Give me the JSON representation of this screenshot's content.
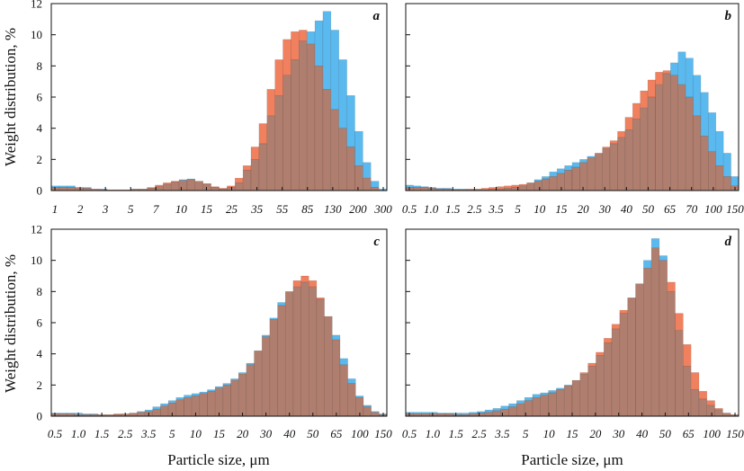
{
  "colors": {
    "series_blue": "#5ab9ee",
    "series_orange": "#f0805e",
    "overlap": "#b07e6e",
    "frame": "#111111"
  },
  "y_axis_label": "Weight distribution, %",
  "x_axis_label": "Particle size, μm",
  "chart_data": [
    {
      "type": "bar",
      "panel": "a",
      "xlabel": "",
      "ylabel": "Weight distribution, %",
      "ylim": [
        0,
        12
      ],
      "y_ticks": [
        0,
        2,
        4,
        6,
        8,
        10,
        12
      ],
      "x_tick_labels": [
        "1",
        "2",
        "3",
        "5",
        "7",
        "10",
        "15",
        "25",
        "35",
        "55",
        "85",
        "130",
        "200",
        "300"
      ],
      "series": [
        {
          "values": [
            0.3,
            0.3,
            0.3,
            0.2,
            0.2,
            0.1,
            0.1,
            0.05,
            0.05,
            0.05,
            0.1,
            0.1,
            0.15,
            0.25,
            0.4,
            0.55,
            0.7,
            0.75,
            0.6,
            0.4,
            0.2,
            0.1,
            0.2,
            0.5,
            1.3,
            2.0,
            3.0,
            4.8,
            6.1,
            7.4,
            8.4,
            9.6,
            10.2,
            10.9,
            11.5,
            10.3,
            8.4,
            6.1,
            3.8,
            1.8,
            0.6,
            0.1
          ]
        },
        {
          "values": [
            0.2,
            0.2,
            0.2,
            0.2,
            0.15,
            0.1,
            0.05,
            0.05,
            0.05,
            0.05,
            0.1,
            0.1,
            0.2,
            0.35,
            0.5,
            0.6,
            0.65,
            0.7,
            0.6,
            0.45,
            0.25,
            0.15,
            0.3,
            0.8,
            1.6,
            2.8,
            4.3,
            6.5,
            8.4,
            9.7,
            10.2,
            10.3,
            9.4,
            8.0,
            6.5,
            5.2,
            4.0,
            2.8,
            1.6,
            0.8,
            0.2,
            0.0
          ]
        }
      ]
    },
    {
      "type": "bar",
      "panel": "b",
      "xlabel": "",
      "ylabel": "",
      "ylim": [
        0,
        12
      ],
      "y_ticks": [
        0,
        2,
        4,
        6,
        8,
        10,
        12
      ],
      "x_tick_labels": [
        "0.5",
        "1.0",
        "1.5",
        "2.5",
        "3.5",
        "5",
        "10",
        "15",
        "20",
        "30",
        "40",
        "50",
        "65",
        "70",
        "100",
        "150"
      ],
      "series": [
        {
          "values": [
            0.35,
            0.3,
            0.25,
            0.2,
            0.15,
            0.15,
            0.1,
            0.1,
            0.05,
            0.05,
            0.05,
            0.1,
            0.1,
            0.15,
            0.2,
            0.3,
            0.5,
            0.7,
            0.9,
            1.2,
            1.4,
            1.6,
            1.8,
            2.0,
            2.2,
            2.4,
            2.7,
            3.0,
            3.4,
            3.9,
            4.6,
            5.3,
            6.0,
            6.8,
            7.5,
            8.2,
            8.9,
            8.5,
            7.4,
            6.3,
            5.0,
            3.8,
            2.4,
            0.9
          ]
        },
        {
          "values": [
            0.2,
            0.2,
            0.2,
            0.15,
            0.1,
            0.1,
            0.05,
            0.05,
            0.1,
            0.1,
            0.15,
            0.2,
            0.25,
            0.3,
            0.35,
            0.4,
            0.5,
            0.6,
            0.75,
            0.9,
            1.1,
            1.3,
            1.5,
            1.8,
            2.1,
            2.4,
            2.8,
            3.2,
            3.8,
            4.7,
            5.6,
            6.4,
            7.1,
            7.6,
            7.7,
            7.4,
            6.8,
            6.0,
            4.8,
            3.5,
            2.5,
            1.6,
            0.9,
            0.3
          ]
        }
      ]
    },
    {
      "type": "bar",
      "panel": "c",
      "xlabel": "Particle size, μm",
      "ylabel": "Weight distribution, %",
      "ylim": [
        0,
        12
      ],
      "y_ticks": [
        0,
        2,
        4,
        6,
        8,
        10,
        12
      ],
      "x_tick_labels": [
        "0.5",
        "1.0",
        "1.5",
        "2.5",
        "3.5",
        "5",
        "10",
        "15",
        "20",
        "30",
        "40",
        "50",
        "65",
        "100",
        "150"
      ],
      "series": [
        {
          "values": [
            0.2,
            0.2,
            0.2,
            0.2,
            0.15,
            0.15,
            0.1,
            0.1,
            0.1,
            0.15,
            0.2,
            0.3,
            0.4,
            0.6,
            0.8,
            1.0,
            1.2,
            1.35,
            1.45,
            1.55,
            1.7,
            1.9,
            2.1,
            2.4,
            2.8,
            3.4,
            4.2,
            5.2,
            6.3,
            7.3,
            8.0,
            8.3,
            8.6,
            8.3,
            7.5,
            6.4,
            5.2,
            3.7,
            2.4,
            1.3,
            0.7,
            0.3,
            0.15
          ]
        },
        {
          "values": [
            0.15,
            0.15,
            0.15,
            0.1,
            0.1,
            0.1,
            0.1,
            0.1,
            0.15,
            0.15,
            0.2,
            0.25,
            0.3,
            0.45,
            0.65,
            0.85,
            1.05,
            1.2,
            1.3,
            1.45,
            1.6,
            1.8,
            2.0,
            2.3,
            2.7,
            3.3,
            4.2,
            5.1,
            6.2,
            7.1,
            8.0,
            8.7,
            9.0,
            8.7,
            7.6,
            6.4,
            4.9,
            3.3,
            2.1,
            1.2,
            0.6,
            0.25,
            0.1
          ]
        }
      ]
    },
    {
      "type": "bar",
      "panel": "d",
      "xlabel": "Particle size, μm",
      "ylabel": "",
      "ylim": [
        0,
        12
      ],
      "y_ticks": [
        0,
        2,
        4,
        6,
        8,
        10,
        12
      ],
      "x_tick_labels": [
        "0.5",
        "1.0",
        "1.5",
        "2.5",
        "3.5",
        "5",
        "10",
        "15",
        "20",
        "30",
        "40",
        "50",
        "65",
        "100",
        "150"
      ],
      "series": [
        {
          "values": [
            0.25,
            0.25,
            0.25,
            0.25,
            0.2,
            0.2,
            0.2,
            0.2,
            0.25,
            0.3,
            0.4,
            0.5,
            0.65,
            0.8,
            1.0,
            1.2,
            1.4,
            1.5,
            1.65,
            1.8,
            2.0,
            2.3,
            2.7,
            3.2,
            3.9,
            4.7,
            5.6,
            6.6,
            7.6,
            8.5,
            10.0,
            11.4,
            10.3,
            8.0,
            5.5,
            3.2,
            1.7,
            1.1,
            0.7,
            0.4,
            0.2,
            0.1
          ]
        },
        {
          "values": [
            0.15,
            0.15,
            0.15,
            0.15,
            0.15,
            0.15,
            0.1,
            0.1,
            0.15,
            0.2,
            0.25,
            0.35,
            0.45,
            0.6,
            0.8,
            1.0,
            1.2,
            1.35,
            1.5,
            1.7,
            1.95,
            2.3,
            2.8,
            3.4,
            4.1,
            5.0,
            5.9,
            6.8,
            7.6,
            8.5,
            9.5,
            10.8,
            10.0,
            8.6,
            6.6,
            4.6,
            2.8,
            1.6,
            1.0,
            0.5,
            0.2,
            0.1
          ]
        }
      ]
    }
  ]
}
